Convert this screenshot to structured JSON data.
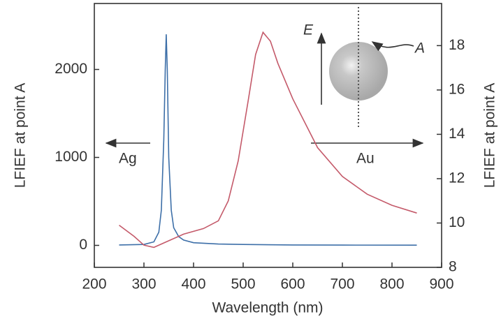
{
  "chart_data": {
    "type": "line",
    "x_label": "Wavelength (nm)",
    "y_label": "LFIEF at point A",
    "y2_label": "LFIEF at point A",
    "annotations": {
      "ag": "Ag",
      "au": "Au",
      "field": "E",
      "point": "A"
    },
    "xlim": [
      200,
      900
    ],
    "xticks": [
      200,
      300,
      400,
      500,
      600,
      700,
      800,
      900
    ],
    "ylim": [
      -250,
      2750
    ],
    "yticks": [
      0,
      1000,
      2000
    ],
    "y2lim": [
      8,
      19.9
    ],
    "y2ticks": [
      8,
      10,
      12,
      14,
      16,
      18
    ],
    "series": [
      {
        "name": "Ag",
        "color": "#3d6fa8",
        "axis": "y",
        "x": [
          250,
          300,
          320,
          330,
          335,
          340,
          343,
          345,
          347,
          350,
          355,
          360,
          370,
          380,
          400,
          450,
          500,
          600,
          700,
          850
        ],
        "values": [
          5,
          10,
          40,
          150,
          400,
          1200,
          2000,
          2400,
          2000,
          1000,
          400,
          200,
          100,
          60,
          30,
          15,
          10,
          5,
          3,
          2
        ]
      },
      {
        "name": "Au",
        "color": "#c45a6a",
        "axis": "y2",
        "x": [
          250,
          280,
          300,
          320,
          350,
          380,
          420,
          450,
          470,
          490,
          510,
          525,
          540,
          555,
          570,
          600,
          650,
          700,
          750,
          800,
          850
        ],
        "values": [
          9.9,
          9.4,
          9.0,
          8.9,
          9.2,
          9.5,
          9.75,
          10.1,
          11,
          12.8,
          15.5,
          17.6,
          18.6,
          18.2,
          17.2,
          15.6,
          13.4,
          12.1,
          11.3,
          10.8,
          10.45
        ]
      }
    ]
  }
}
